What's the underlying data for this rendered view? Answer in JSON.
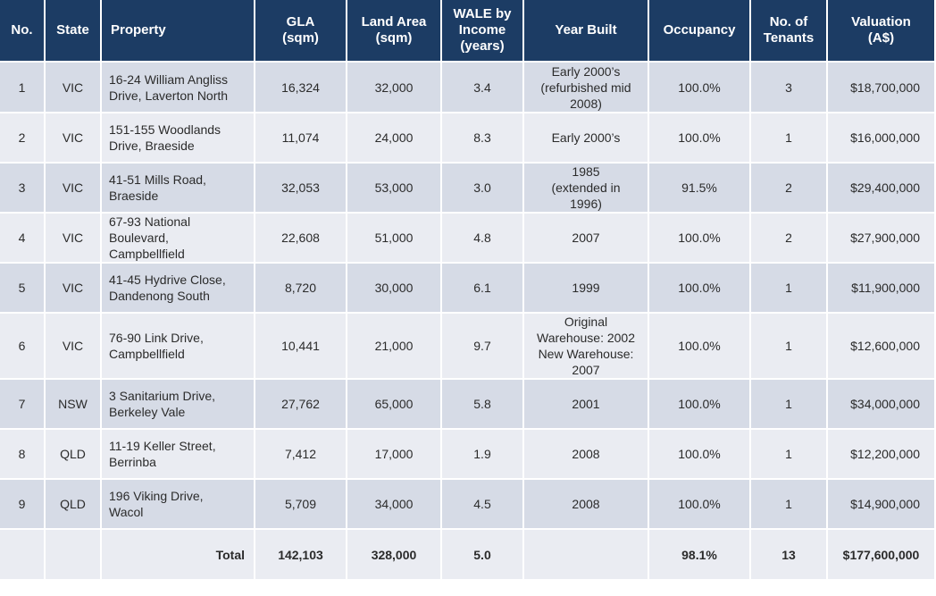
{
  "headers": {
    "no": "No.",
    "state": "State",
    "property": "Property",
    "gla": [
      "GLA",
      "(sqm)"
    ],
    "land": [
      "Land Area",
      "(sqm)"
    ],
    "wale": [
      "WALE by",
      "Income",
      "(years)"
    ],
    "year": "Year Built",
    "occupancy": "Occupancy",
    "tenants": [
      "No. of",
      "Tenants"
    ],
    "valuation": [
      "Valuation",
      "(A$)"
    ]
  },
  "rows": [
    {
      "no": "1",
      "state": "VIC",
      "property": [
        "16-24 William Angliss",
        "Drive, Laverton North"
      ],
      "gla": "16,324",
      "land": "32,000",
      "wale": "3.4",
      "year": [
        "Early 2000’s",
        "(refurbished mid",
        "2008)"
      ],
      "occupancy": "100.0%",
      "tenants": "3",
      "valuation": "$18,700,000"
    },
    {
      "no": "2",
      "state": "VIC",
      "property": [
        "151-155 Woodlands",
        "Drive, Braeside"
      ],
      "gla": "11,074",
      "land": "24,000",
      "wale": "8.3",
      "year": [
        "Early 2000’s"
      ],
      "occupancy": "100.0%",
      "tenants": "1",
      "valuation": "$16,000,000"
    },
    {
      "no": "3",
      "state": "VIC",
      "property": [
        "41-51 Mills Road,",
        "Braeside"
      ],
      "gla": "32,053",
      "land": "53,000",
      "wale": "3.0",
      "year": [
        "1985",
        "(extended in",
        "1996)"
      ],
      "occupancy": "91.5%",
      "tenants": "2",
      "valuation": "$29,400,000"
    },
    {
      "no": "4",
      "state": "VIC",
      "property": [
        "67-93 National",
        "Boulevard,",
        "Campbellfield"
      ],
      "gla": "22,608",
      "land": "51,000",
      "wale": "4.8",
      "year": [
        "2007"
      ],
      "occupancy": "100.0%",
      "tenants": "2",
      "valuation": "$27,900,000"
    },
    {
      "no": "5",
      "state": "VIC",
      "property": [
        "41-45 Hydrive Close,",
        "Dandenong South"
      ],
      "gla": "8,720",
      "land": "30,000",
      "wale": "6.1",
      "year": [
        "1999"
      ],
      "occupancy": "100.0%",
      "tenants": "1",
      "valuation": "$11,900,000"
    },
    {
      "no": "6",
      "state": "VIC",
      "property": [
        "76-90 Link Drive,",
        "Campbellfield"
      ],
      "gla": "10,441",
      "land": "21,000",
      "wale": "9.7",
      "year": [
        "Original",
        "Warehouse: 2002",
        "New Warehouse:",
        "2007"
      ],
      "occupancy": "100.0%",
      "tenants": "1",
      "valuation": "$12,600,000"
    },
    {
      "no": "7",
      "state": "NSW",
      "property": [
        "3 Sanitarium Drive,",
        "Berkeley Vale"
      ],
      "gla": "27,762",
      "land": "65,000",
      "wale": "5.8",
      "year": [
        "2001"
      ],
      "occupancy": "100.0%",
      "tenants": "1",
      "valuation": "$34,000,000"
    },
    {
      "no": "8",
      "state": "QLD",
      "property": [
        "11-19 Keller Street,",
        "Berrinba"
      ],
      "gla": "7,412",
      "land": "17,000",
      "wale": "1.9",
      "year": [
        "2008"
      ],
      "occupancy": "100.0%",
      "tenants": "1",
      "valuation": "$12,200,000"
    },
    {
      "no": "9",
      "state": "QLD",
      "property": [
        "196 Viking Drive,",
        "Wacol"
      ],
      "gla": "5,709",
      "land": "34,000",
      "wale": "4.5",
      "year": [
        "2008"
      ],
      "occupancy": "100.0%",
      "tenants": "1",
      "valuation": "$14,900,000"
    }
  ],
  "total": {
    "label": "Total",
    "gla": "142,103",
    "land": "328,000",
    "wale": "5.0",
    "occupancy": "98.1%",
    "tenants": "13",
    "valuation": "$177,600,000"
  },
  "colors": {
    "header_bg": "#1c3c64",
    "row_odd": "#d6dbe6",
    "row_even": "#eaecf2"
  }
}
